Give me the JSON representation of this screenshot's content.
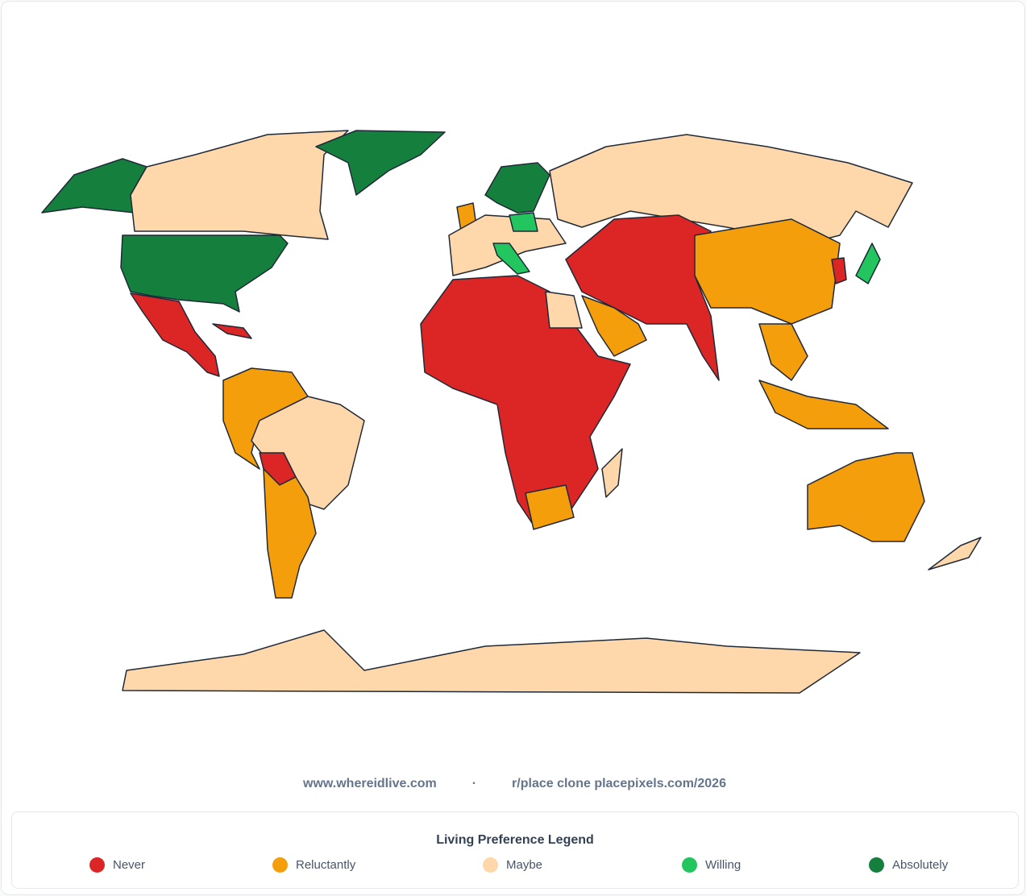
{
  "footer": {
    "site": "www.whereidlive.com",
    "separator": "·",
    "clone": "r/place clone placepixels.com/2026"
  },
  "legend": {
    "title": "Living Preference Legend",
    "items": [
      {
        "name": "Never",
        "color": "#dc2626"
      },
      {
        "name": "Reluctantly",
        "color": "#f59e0b"
      },
      {
        "name": "Maybe",
        "color": "#fed7aa"
      },
      {
        "name": "Willing",
        "color": "#22c55e"
      },
      {
        "name": "Absolutely",
        "color": "#15803d"
      }
    ]
  }
}
